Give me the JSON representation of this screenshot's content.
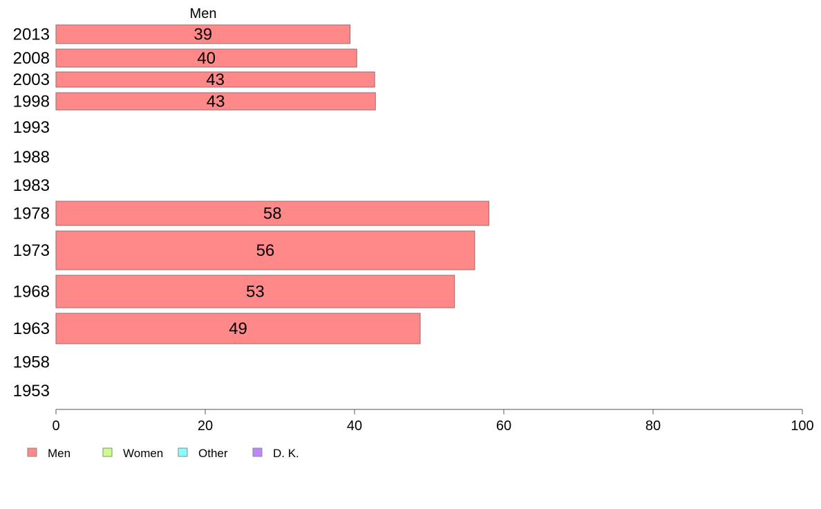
{
  "chart_data": {
    "type": "bar",
    "orientation": "horizontal",
    "title": "",
    "series_title": "Men",
    "xlabel": "",
    "ylabel": "",
    "xlim": [
      0,
      100
    ],
    "x_ticks": [
      0,
      20,
      40,
      60,
      80,
      100
    ],
    "grid": false,
    "legend_position": "bottom-left",
    "categories": [
      "2013",
      "2008",
      "2003",
      "1998",
      "1993",
      "1988",
      "1983",
      "1978",
      "1973",
      "1968",
      "1963",
      "1958",
      "1953"
    ],
    "series": [
      {
        "name": "Men",
        "color": "#ff8888",
        "values": [
          39.4,
          40.3,
          42.7,
          42.8,
          null,
          null,
          null,
          58.0,
          56.1,
          53.4,
          48.8,
          null,
          null
        ],
        "labels": [
          "39",
          "40",
          "43",
          "43",
          "",
          "",
          "",
          "58",
          "56",
          "53",
          "49",
          "",
          ""
        ]
      }
    ],
    "legend": [
      {
        "label": "Men",
        "color": "#ff8888"
      },
      {
        "label": "Women",
        "color": "#ccff88"
      },
      {
        "label": "Other",
        "color": "#88ffff"
      },
      {
        "label": "D. K.",
        "color": "#bb88ff"
      }
    ]
  }
}
